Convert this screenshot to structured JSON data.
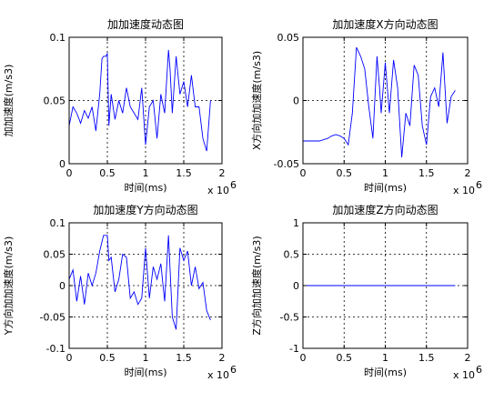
{
  "chart_data": [
    {
      "type": "line",
      "title": "加加速度动态图",
      "xlabel": "时间(ms)",
      "ylabel": "加加速度(m/s3)",
      "x_multiplier": "x 10",
      "x_exponent": "6",
      "xlim": [
        0,
        2
      ],
      "ylim": [
        0,
        0.1
      ],
      "xticks": [
        "0",
        "0.5",
        "1",
        "1.5",
        "2"
      ],
      "yticks": [
        "0",
        "0.05",
        "0.1"
      ],
      "grid": true,
      "line_color": "#0000ff",
      "series": [
        {
          "x": [
            0.0,
            0.05,
            0.1,
            0.15,
            0.2,
            0.25,
            0.3,
            0.35,
            0.4,
            0.43,
            0.45,
            0.48,
            0.5,
            0.52,
            0.55,
            0.6,
            0.65,
            0.7,
            0.75,
            0.8,
            0.85,
            0.9,
            0.95,
            1.0,
            1.05,
            1.1,
            1.15,
            1.2,
            1.25,
            1.3,
            1.32,
            1.35,
            1.4,
            1.45,
            1.5,
            1.55,
            1.6,
            1.65,
            1.7,
            1.75,
            1.8,
            1.85
          ],
          "y": [
            0.03,
            0.045,
            0.04,
            0.032,
            0.042,
            0.036,
            0.045,
            0.026,
            0.055,
            0.083,
            0.085,
            0.085,
            0.087,
            0.03,
            0.055,
            0.035,
            0.05,
            0.04,
            0.06,
            0.045,
            0.04,
            0.035,
            0.06,
            0.015,
            0.045,
            0.05,
            0.02,
            0.055,
            0.04,
            0.09,
            0.075,
            0.04,
            0.085,
            0.055,
            0.065,
            0.045,
            0.07,
            0.045,
            0.045,
            0.02,
            0.01,
            0.05
          ]
        }
      ]
    },
    {
      "type": "line",
      "title": "加加速度X方向动态图",
      "xlabel": "时间(ms)",
      "ylabel": "X方向加加速度(m/s3)",
      "x_multiplier": "x 10",
      "x_exponent": "6",
      "xlim": [
        0,
        2
      ],
      "ylim": [
        -0.05,
        0.05
      ],
      "xticks": [
        "0",
        "0.5",
        "1",
        "1.5",
        "2"
      ],
      "yticks": [
        "-0.05",
        "0",
        "0.05"
      ],
      "grid": true,
      "line_color": "#0000ff",
      "series": [
        {
          "x": [
            0.0,
            0.1,
            0.2,
            0.3,
            0.35,
            0.4,
            0.45,
            0.5,
            0.55,
            0.6,
            0.65,
            0.7,
            0.75,
            0.8,
            0.85,
            0.9,
            0.93,
            0.95,
            1.0,
            1.05,
            1.1,
            1.15,
            1.2,
            1.25,
            1.3,
            1.35,
            1.4,
            1.45,
            1.5,
            1.55,
            1.6,
            1.65,
            1.7,
            1.75,
            1.8,
            1.85
          ],
          "y": [
            -0.032,
            -0.032,
            -0.032,
            -0.03,
            -0.028,
            -0.027,
            -0.028,
            -0.03,
            -0.035,
            -0.01,
            0.042,
            0.035,
            0.025,
            -0.005,
            -0.03,
            0.035,
            0.01,
            -0.01,
            0.03,
            -0.01,
            0.032,
            0.01,
            -0.045,
            -0.01,
            -0.02,
            0.028,
            0.02,
            -0.02,
            -0.035,
            0.003,
            0.01,
            -0.005,
            0.038,
            -0.018,
            0.003,
            0.008
          ]
        }
      ]
    },
    {
      "type": "line",
      "title": "加加速度Y方向动态图",
      "xlabel": "时间(ms)",
      "ylabel": "Y方向加加速度(m/s3)",
      "x_multiplier": "x 10",
      "x_exponent": "6",
      "xlim": [
        0,
        2
      ],
      "ylim": [
        -0.1,
        0.1
      ],
      "xticks": [
        "0",
        "0.5",
        "1",
        "1.5",
        "2"
      ],
      "yticks": [
        "-0.1",
        "-0.05",
        "0",
        "0.05",
        "0.1"
      ],
      "grid": true,
      "line_color": "#0000ff",
      "series": [
        {
          "x": [
            0.0,
            0.05,
            0.1,
            0.15,
            0.2,
            0.25,
            0.3,
            0.35,
            0.4,
            0.45,
            0.5,
            0.52,
            0.55,
            0.6,
            0.65,
            0.7,
            0.75,
            0.8,
            0.85,
            0.9,
            0.95,
            1.0,
            1.05,
            1.1,
            1.15,
            1.2,
            1.25,
            1.3,
            1.35,
            1.4,
            1.45,
            1.5,
            1.55,
            1.6,
            1.65,
            1.7,
            1.75,
            1.8,
            1.85
          ],
          "y": [
            0.01,
            0.025,
            -0.025,
            0.015,
            -0.03,
            0.02,
            0.0,
            0.02,
            0.055,
            0.08,
            0.08,
            0.04,
            0.045,
            -0.01,
            0.01,
            0.05,
            0.045,
            -0.02,
            -0.01,
            -0.03,
            -0.02,
            0.06,
            -0.02,
            0.03,
            0.01,
            0.035,
            -0.025,
            0.08,
            -0.05,
            -0.07,
            0.06,
            0.04,
            0.055,
            0.0,
            0.03,
            -0.005,
            0.005,
            -0.04,
            -0.055
          ]
        }
      ]
    },
    {
      "type": "line",
      "title": "加加速度Z方向动态图",
      "xlabel": "时间(ms)",
      "ylabel": "Z方向加加速度(m/s3)",
      "x_multiplier": "x 10",
      "x_exponent": "6",
      "xlim": [
        0,
        2
      ],
      "ylim": [
        -1,
        1
      ],
      "xticks": [
        "0",
        "0.5",
        "1",
        "1.5",
        "2"
      ],
      "yticks": [
        "-1",
        "-0.5",
        "0",
        "0.5",
        "1"
      ],
      "grid": true,
      "line_color": "#0000ff",
      "series": [
        {
          "x": [
            0.0,
            1.85
          ],
          "y": [
            0,
            0
          ]
        }
      ]
    }
  ]
}
